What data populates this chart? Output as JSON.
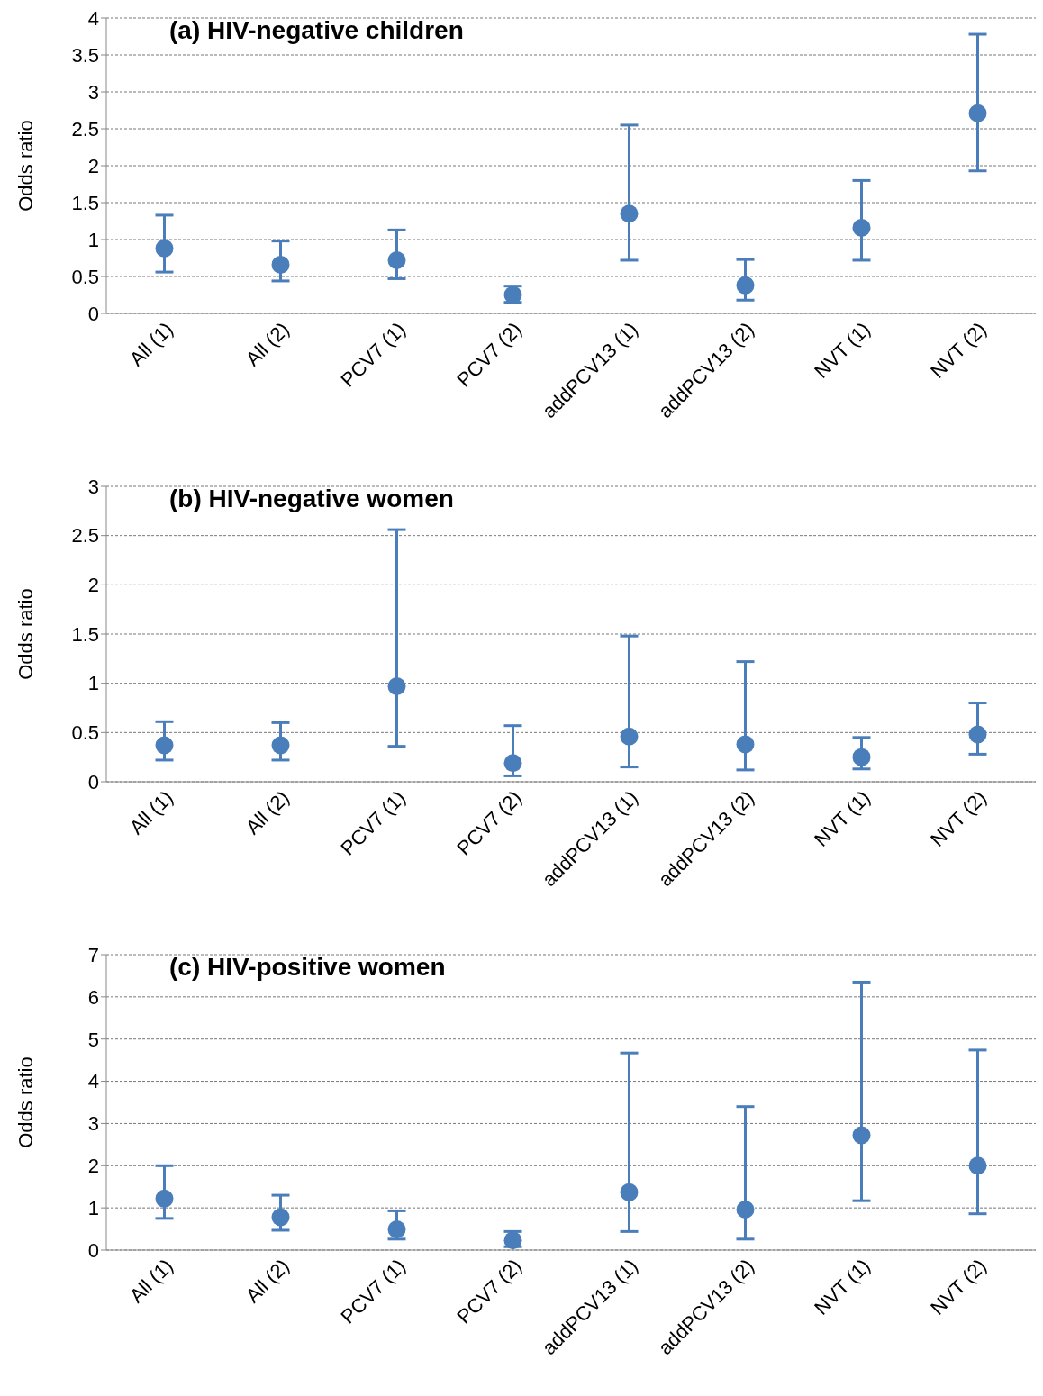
{
  "chart_data": [
    {
      "type": "scatter",
      "title": "(a) HIV-negative children",
      "ylabel": "Odds ratio",
      "categories": [
        "All  (1)",
        "All (2)",
        "PCV7 (1)",
        "PCV7 (2)",
        "addPCV13 (1)",
        "addPCV13 (2)",
        "NVT (1)",
        "NVT (2)"
      ],
      "series": [
        {
          "color": "#4a7ebb",
          "values": [
            0.88,
            0.66,
            0.72,
            0.25,
            1.35,
            0.38,
            1.16,
            2.71
          ],
          "errors": [
            [
              0.56,
              1.33
            ],
            [
              0.44,
              0.98
            ],
            [
              0.47,
              1.13
            ],
            [
              0.15,
              0.37
            ],
            [
              0.72,
              2.55
            ],
            [
              0.18,
              0.73
            ],
            [
              0.72,
              1.8
            ],
            [
              1.93,
              3.78
            ]
          ]
        }
      ],
      "ylim": [
        0,
        4
      ],
      "yticks": [
        0,
        0.5,
        1,
        1.5,
        2,
        2.5,
        3,
        3.5,
        4
      ],
      "grid": "y",
      "marker": "circle",
      "legend": false
    },
    {
      "type": "scatter",
      "title": "(b) HIV-negative women",
      "ylabel": "Odds ratio",
      "categories": [
        "All (1)",
        "All (2)",
        "PCV7 (1)",
        "PCV7 (2)",
        "addPCV13 (1)",
        "addPCV13 (2)",
        "NVT (1)",
        "NVT (2)"
      ],
      "series": [
        {
          "color": "#4a7ebb",
          "values": [
            0.37,
            0.37,
            0.97,
            0.19,
            0.46,
            0.38,
            0.25,
            0.48
          ],
          "errors": [
            [
              0.22,
              0.61
            ],
            [
              0.22,
              0.6
            ],
            [
              0.36,
              2.56
            ],
            [
              0.06,
              0.57
            ],
            [
              0.15,
              1.48
            ],
            [
              0.12,
              1.22
            ],
            [
              0.13,
              0.45
            ],
            [
              0.28,
              0.8
            ]
          ]
        }
      ],
      "ylim": [
        0,
        3
      ],
      "yticks": [
        0,
        0.5,
        1,
        1.5,
        2,
        2.5,
        3
      ],
      "grid": "y",
      "marker": "circle",
      "legend": false
    },
    {
      "type": "scatter",
      "title": "(c) HIV-positive women",
      "ylabel": "Odds ratio",
      "categories": [
        "All (1)",
        "All (2)",
        "PCV7 (1)",
        "PCV7 (2)",
        "addPCV13 (1)",
        "addPCV13 (2)",
        "NVT (1)",
        "NVT (2)"
      ],
      "series": [
        {
          "color": "#4a7ebb",
          "values": [
            1.22,
            0.78,
            0.49,
            0.23,
            1.37,
            0.96,
            2.72,
            2.0
          ],
          "errors": [
            [
              0.75,
              2.0
            ],
            [
              0.47,
              1.3
            ],
            [
              0.26,
              0.93
            ],
            [
              0.08,
              0.44
            ],
            [
              0.44,
              4.67
            ],
            [
              0.26,
              3.4
            ],
            [
              1.17,
              6.35
            ],
            [
              0.86,
              4.74
            ]
          ]
        }
      ],
      "ylim": [
        0,
        7
      ],
      "yticks": [
        0,
        1,
        2,
        3,
        4,
        5,
        6,
        7
      ],
      "grid": "y",
      "marker": "circle",
      "legend": false
    }
  ]
}
